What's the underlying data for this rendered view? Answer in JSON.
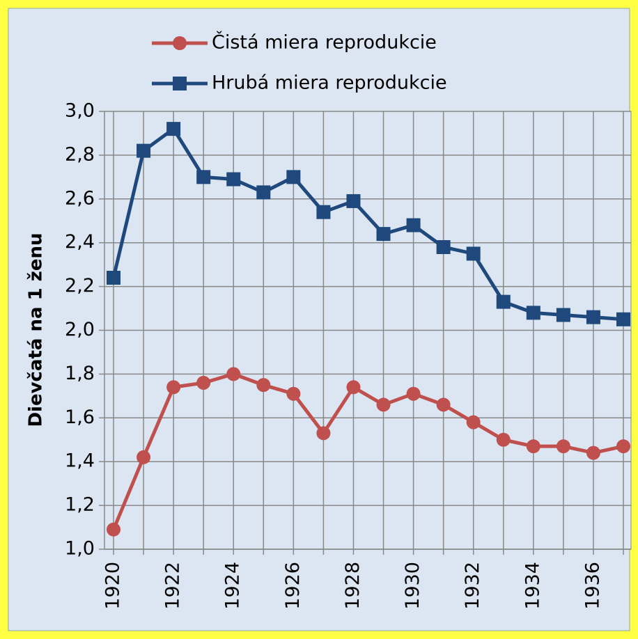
{
  "chart_data": {
    "type": "line",
    "y_label": "Dievčatá na 1 ženu",
    "categories": [
      "1920",
      null,
      "1922",
      null,
      "1924",
      null,
      "1926",
      null,
      "1928",
      null,
      "1930",
      null,
      "1932",
      null,
      "1934",
      null,
      "1936",
      null
    ],
    "series": [
      {
        "name": "Čistá miera reprodukcie",
        "color": "#c0504d",
        "marker": "circle",
        "values": [
          1.09,
          1.42,
          1.74,
          1.76,
          1.8,
          1.75,
          1.71,
          1.53,
          1.74,
          1.66,
          1.71,
          1.66,
          1.58,
          1.5,
          1.47,
          1.47,
          1.44,
          1.47
        ]
      },
      {
        "name": "Hrubá miera reprodukcie",
        "color": "#1f497d",
        "marker": "square",
        "values": [
          2.24,
          2.82,
          2.92,
          2.7,
          2.69,
          2.63,
          2.7,
          2.54,
          2.59,
          2.44,
          2.48,
          2.38,
          2.35,
          2.13,
          2.08,
          2.07,
          2.06,
          2.05
        ]
      }
    ],
    "ylim": [
      1.0,
      3.0
    ],
    "yticks": [
      {
        "value": 1.0,
        "label": "1,0"
      },
      {
        "value": 1.2,
        "label": "1,2"
      },
      {
        "value": 1.4,
        "label": "1,4"
      },
      {
        "value": 1.6,
        "label": "1,6"
      },
      {
        "value": 1.8,
        "label": "1,8"
      },
      {
        "value": 2.0,
        "label": "2,0"
      },
      {
        "value": 2.2,
        "label": "2,2"
      },
      {
        "value": 2.4,
        "label": "2,4"
      },
      {
        "value": 2.6,
        "label": "2,6"
      },
      {
        "value": 2.8,
        "label": "2,8"
      },
      {
        "value": 3.0,
        "label": "3,0"
      }
    ],
    "grid": true,
    "legend": "top"
  }
}
